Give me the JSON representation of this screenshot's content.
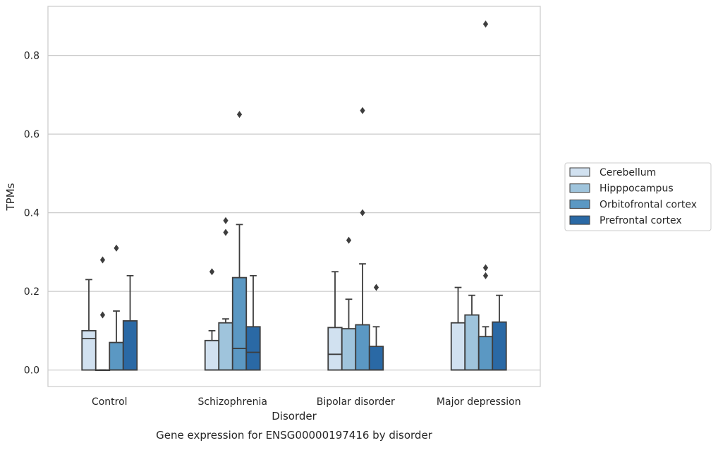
{
  "chart_data": {
    "type": "box",
    "xlabel": "Disorder",
    "ylabel": "TPMs",
    "caption": "Gene expression for ENSG00000197416 by disorder",
    "ylim": [
      -0.042,
      0.925
    ],
    "yticks": [
      0.0,
      0.2,
      0.4,
      0.6,
      0.8
    ],
    "ytick_labels": [
      "0.0",
      "0.2",
      "0.4",
      "0.6",
      "0.8"
    ],
    "grid": "horizontal",
    "legend_position": "center-right",
    "categories": [
      "Control",
      "Schizophrenia",
      "Bipolar disorder",
      "Major depression"
    ],
    "series": [
      {
        "name": "Cerebellum",
        "color": "#d1e1f0",
        "boxes": [
          {
            "whislo": 0.0,
            "q1": 0.0,
            "med": 0.08,
            "q3": 0.1,
            "whishi": 0.23,
            "fliers": []
          },
          {
            "whislo": 0.0,
            "q1": 0.0,
            "med": 0.0,
            "q3": 0.075,
            "whishi": 0.1,
            "fliers": [
              0.25
            ]
          },
          {
            "whislo": 0.0,
            "q1": 0.0,
            "med": 0.04,
            "q3": 0.108,
            "whishi": 0.25,
            "fliers": []
          },
          {
            "whislo": 0.0,
            "q1": 0.0,
            "med": 0.0,
            "q3": 0.12,
            "whishi": 0.21,
            "fliers": []
          }
        ]
      },
      {
        "name": "Hipppocampus",
        "color": "#9fc4dc",
        "boxes": [
          {
            "whislo": 0.0,
            "q1": 0.0,
            "med": 0.0,
            "q3": 0.0,
            "whishi": 0.0,
            "fliers": [
              0.14,
              0.28
            ]
          },
          {
            "whislo": 0.0,
            "q1": 0.0,
            "med": 0.0,
            "q3": 0.12,
            "whishi": 0.13,
            "fliers": [
              0.35,
              0.38
            ]
          },
          {
            "whislo": 0.0,
            "q1": 0.0,
            "med": 0.0,
            "q3": 0.105,
            "whishi": 0.18,
            "fliers": [
              0.33
            ]
          },
          {
            "whislo": 0.0,
            "q1": 0.0,
            "med": 0.0,
            "q3": 0.14,
            "whishi": 0.19,
            "fliers": []
          }
        ]
      },
      {
        "name": "Orbitofrontal cortex",
        "color": "#5b98c3",
        "boxes": [
          {
            "whislo": 0.0,
            "q1": 0.0,
            "med": 0.0,
            "q3": 0.07,
            "whishi": 0.15,
            "fliers": [
              0.31
            ]
          },
          {
            "whislo": 0.0,
            "q1": 0.0,
            "med": 0.055,
            "q3": 0.235,
            "whishi": 0.37,
            "fliers": [
              0.65
            ]
          },
          {
            "whislo": 0.0,
            "q1": 0.0,
            "med": 0.0,
            "q3": 0.115,
            "whishi": 0.27,
            "fliers": [
              0.4,
              0.66
            ]
          },
          {
            "whislo": 0.0,
            "q1": 0.0,
            "med": 0.0,
            "q3": 0.085,
            "whishi": 0.11,
            "fliers": [
              0.24,
              0.26,
              0.88
            ]
          }
        ]
      },
      {
        "name": "Prefrontal cortex",
        "color": "#2a69a5",
        "boxes": [
          {
            "whislo": 0.0,
            "q1": 0.0,
            "med": 0.0,
            "q3": 0.125,
            "whishi": 0.24,
            "fliers": []
          },
          {
            "whislo": 0.0,
            "q1": 0.0,
            "med": 0.045,
            "q3": 0.11,
            "whishi": 0.24,
            "fliers": []
          },
          {
            "whislo": 0.0,
            "q1": 0.0,
            "med": 0.0,
            "q3": 0.06,
            "whishi": 0.11,
            "fliers": [
              0.21
            ]
          },
          {
            "whislo": 0.0,
            "q1": 0.0,
            "med": 0.0,
            "q3": 0.122,
            "whishi": 0.19,
            "fliers": []
          }
        ]
      }
    ]
  }
}
